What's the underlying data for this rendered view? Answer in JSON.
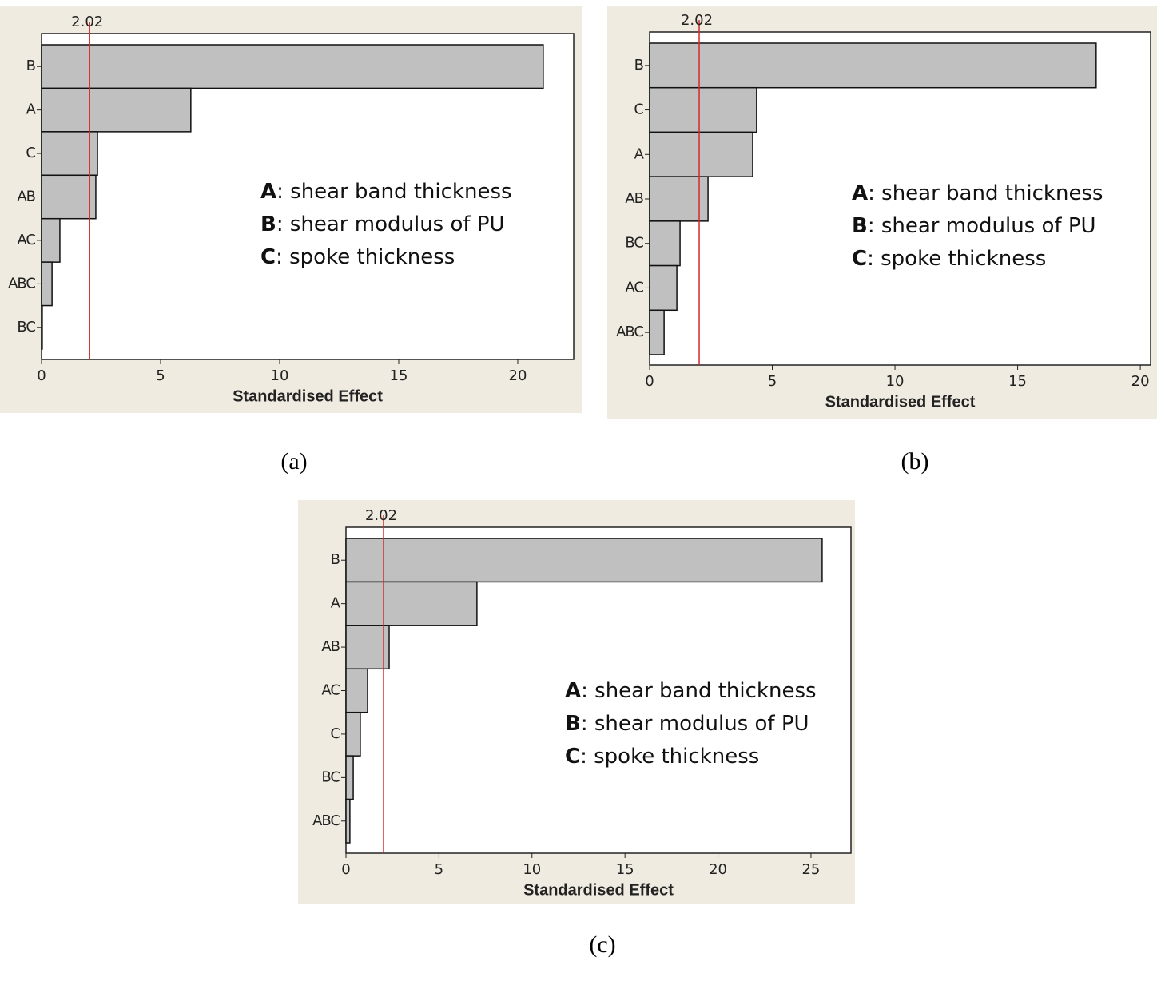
{
  "chart_data": [
    {
      "type": "bar",
      "orientation": "horizontal",
      "caption": "(a)",
      "xlabel": "Standardised Effect",
      "categories": [
        "B",
        "A",
        "C",
        "AB",
        "AC",
        "ABC",
        "BC"
      ],
      "values": [
        21.07,
        6.27,
        2.35,
        2.28,
        0.77,
        0.44,
        0.03
      ],
      "color": "#c0c0c0",
      "xlim": [
        0,
        22.35
      ],
      "xticks": [
        0,
        5,
        10,
        15,
        20
      ],
      "reference": 2.02,
      "reference_color": "#d42a2a",
      "annotations": [
        {
          "key": "A",
          "text": ": shear band thickness"
        },
        {
          "key": "B",
          "text": ": shear modulus of PU"
        },
        {
          "key": "C",
          "text": ": spoke thickness"
        }
      ]
    },
    {
      "type": "bar",
      "orientation": "horizontal",
      "caption": "(b)",
      "xlabel": "Standardised Effect",
      "categories": [
        "B",
        "C",
        "A",
        "AB",
        "BC",
        "AC",
        "ABC"
      ],
      "values": [
        18.2,
        4.36,
        4.2,
        2.38,
        1.24,
        1.11,
        0.59
      ],
      "color": "#c0c0c0",
      "xlim": [
        0,
        20.42
      ],
      "xticks": [
        0,
        5,
        10,
        15,
        20
      ],
      "reference": 2.02,
      "reference_color": "#d42a2a",
      "annotations": [
        {
          "key": "A",
          "text": ": shear band thickness"
        },
        {
          "key": "B",
          "text": ": shear modulus of PU"
        },
        {
          "key": "C",
          "text": ": spoke thickness"
        }
      ]
    },
    {
      "type": "bar",
      "orientation": "horizontal",
      "caption": "(c)",
      "xlabel": "Standardised Effect",
      "categories": [
        "B",
        "A",
        "AB",
        "AC",
        "C",
        "BC",
        "ABC"
      ],
      "values": [
        25.6,
        7.04,
        2.32,
        1.16,
        0.77,
        0.39,
        0.21
      ],
      "color": "#c0c0c0",
      "xlim": [
        0,
        27.15
      ],
      "xticks": [
        0,
        5,
        10,
        15,
        20,
        25
      ],
      "reference": 2.02,
      "reference_color": "#d42a2a",
      "annotations": [
        {
          "key": "A",
          "text": ": shear band thickness"
        },
        {
          "key": "B",
          "text": ": shear modulus of PU"
        },
        {
          "key": "C",
          "text": ": spoke thickness"
        }
      ]
    }
  ]
}
